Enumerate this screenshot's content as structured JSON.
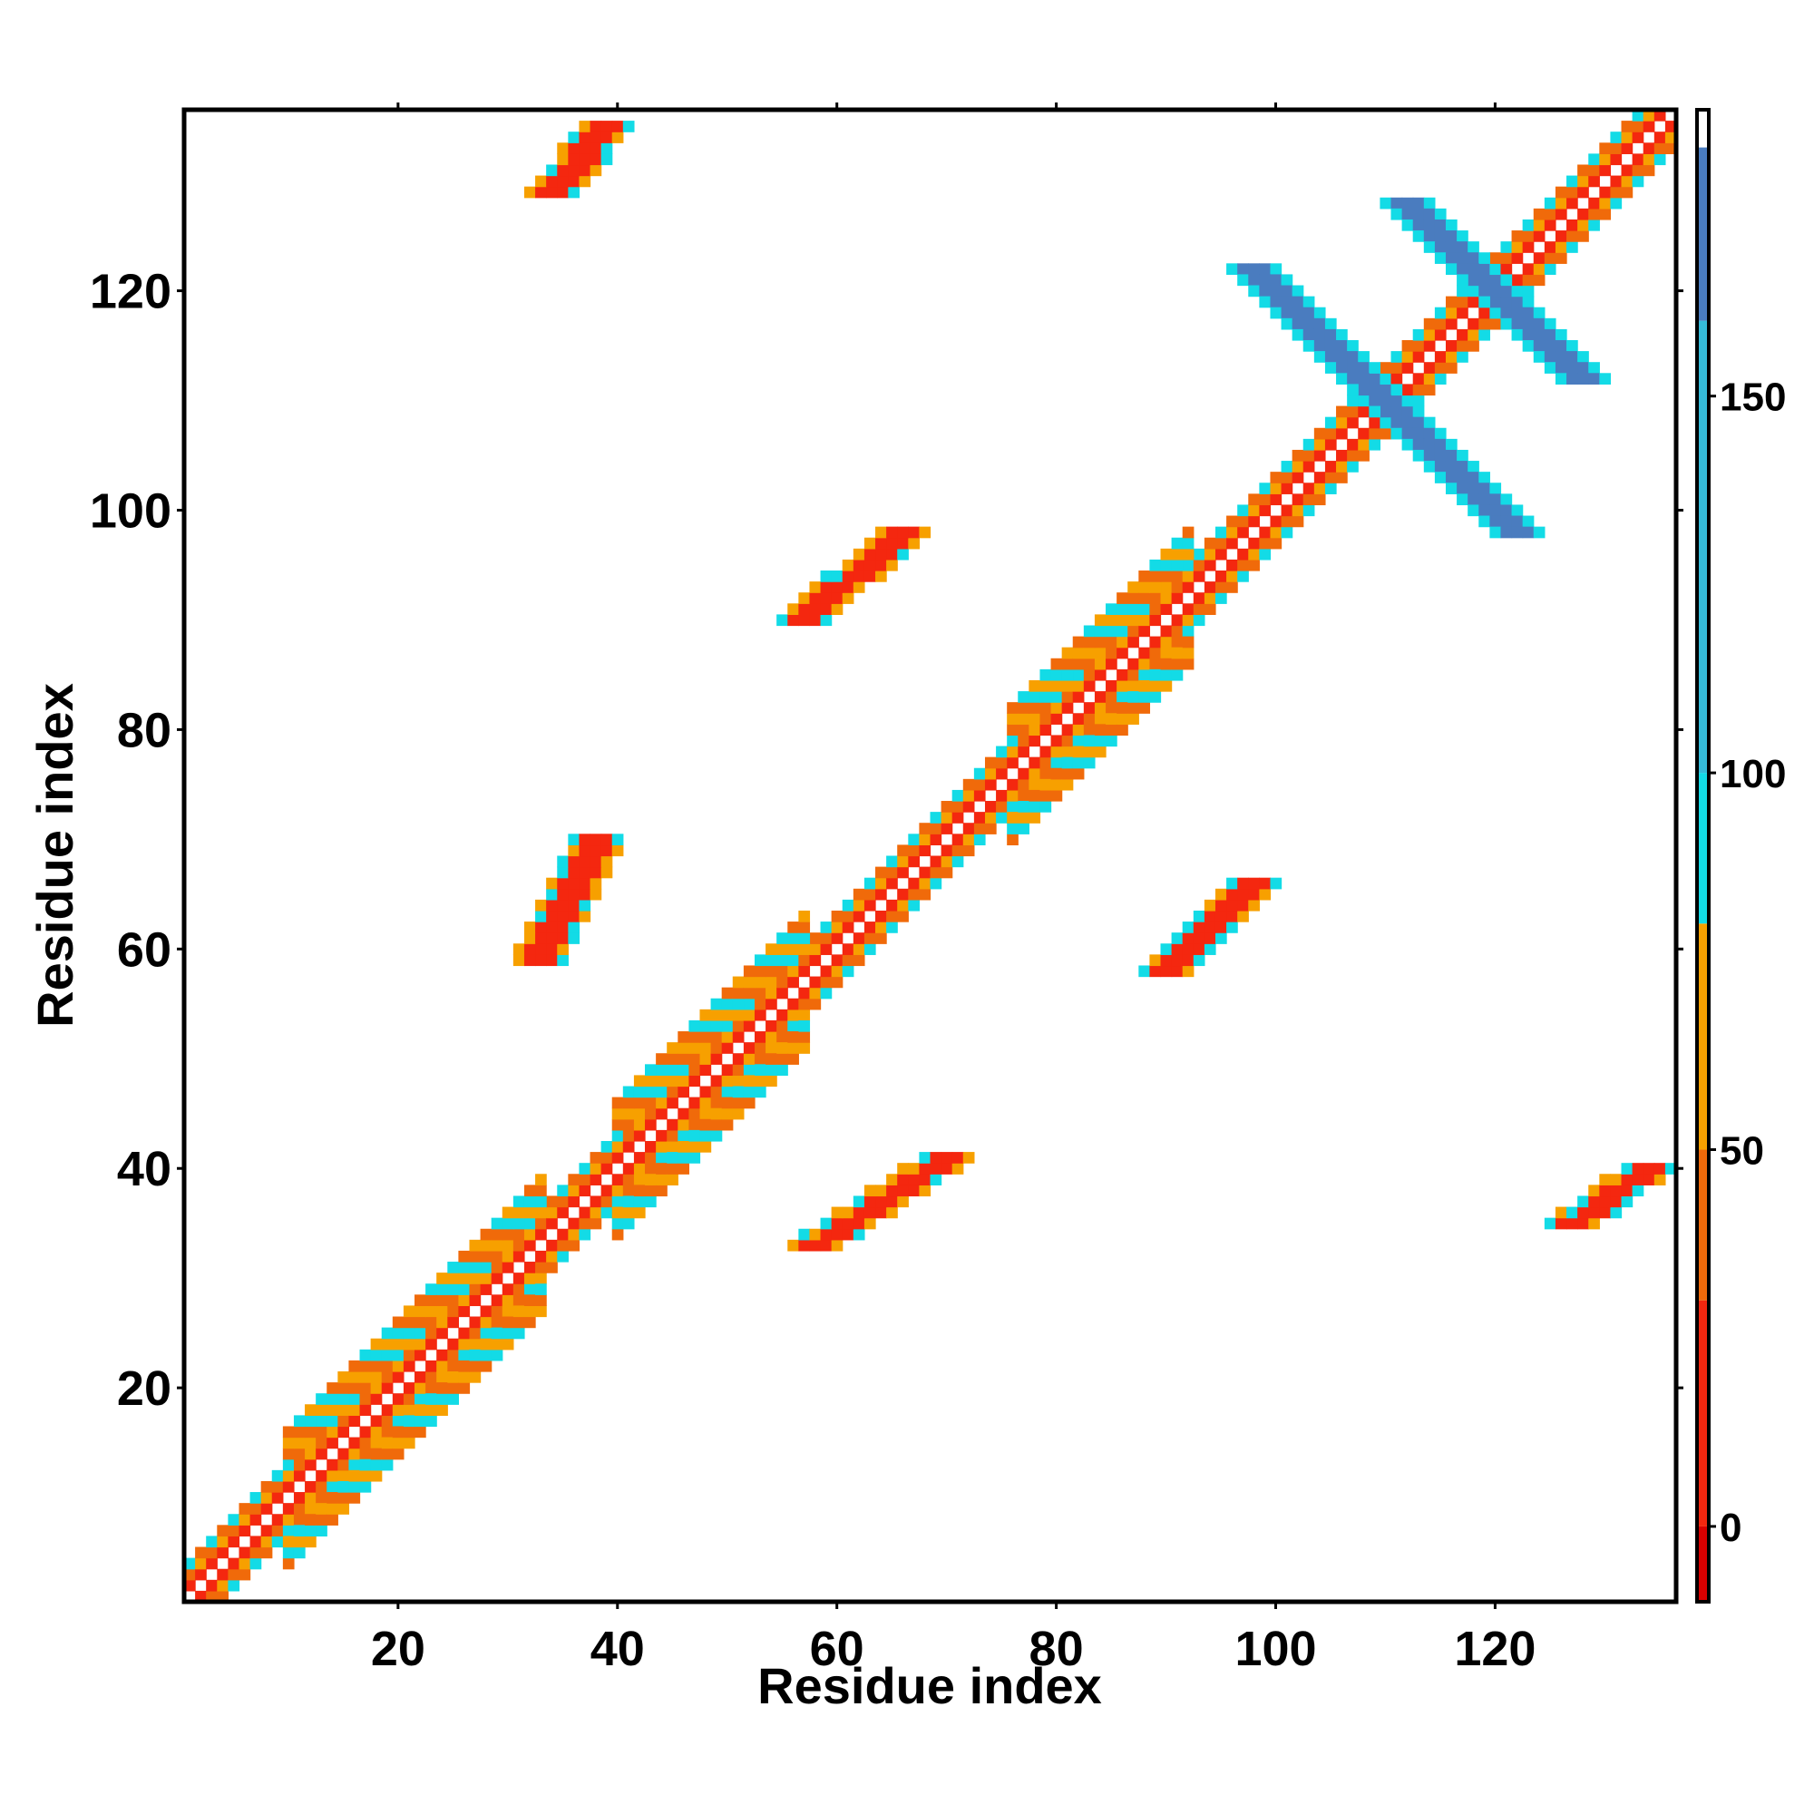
{
  "chart_data": {
    "type": "heatmap",
    "title": "",
    "xlabel": "Residue index",
    "ylabel": "Residue index",
    "xlim": [
      1,
      136
    ],
    "ylim": [
      1,
      136
    ],
    "xticks": [
      20,
      40,
      60,
      80,
      100,
      120
    ],
    "yticks": [
      20,
      40,
      60,
      80,
      100,
      120
    ],
    "grid": false,
    "legend": "colorbar-right",
    "colorbar": {
      "range": [
        -10,
        188
      ],
      "ticks": [
        0,
        50,
        100,
        150
      ],
      "bands": [
        {
          "from": -10,
          "to": 0,
          "color": "#d90000"
        },
        {
          "from": 0,
          "to": 30,
          "color": "#f4270f"
        },
        {
          "from": 30,
          "to": 50,
          "color": "#f06a0a"
        },
        {
          "from": 50,
          "to": 80,
          "color": "#f7a000"
        },
        {
          "from": 80,
          "to": 100,
          "color": "#13dbe6"
        },
        {
          "from": 100,
          "to": 160,
          "color": "#35bbd9"
        },
        {
          "from": 160,
          "to": 183,
          "color": "#4a7cbf"
        },
        {
          "from": 183,
          "to": 188,
          "color": "#ffffff"
        }
      ]
    },
    "regions": [
      {
        "kind": "diagonal",
        "from": 1,
        "to": 136,
        "width": 3,
        "pattern": "checker"
      },
      {
        "kind": "helix-band",
        "from": 10,
        "to": 33,
        "width": 6
      },
      {
        "kind": "helix-band",
        "from": 40,
        "to": 57,
        "width": 6
      },
      {
        "kind": "helix-band",
        "from": 76,
        "to": 92,
        "width": 6
      },
      {
        "kind": "cross",
        "center": [
          110,
          110
        ],
        "arm": 12,
        "value": 170
      },
      {
        "kind": "cross",
        "center": [
          120,
          120
        ],
        "arm": 8,
        "value": 170
      },
      {
        "kind": "sheet",
        "cells": [
          [
            33,
            59
          ],
          [
            38,
            70
          ]
        ]
      },
      {
        "kind": "sheet",
        "cells": [
          [
            58,
            33
          ],
          [
            70,
            41
          ]
        ]
      },
      {
        "kind": "sheet",
        "cells": [
          [
            57,
            90
          ],
          [
            66,
            98
          ]
        ]
      },
      {
        "kind": "sheet",
        "cells": [
          [
            90,
            58
          ],
          [
            98,
            66
          ]
        ]
      },
      {
        "kind": "sheet",
        "cells": [
          [
            34,
            129
          ],
          [
            39,
            135
          ]
        ]
      },
      {
        "kind": "sheet",
        "cells": [
          [
            127,
            35
          ],
          [
            134,
            40
          ]
        ]
      }
    ]
  }
}
